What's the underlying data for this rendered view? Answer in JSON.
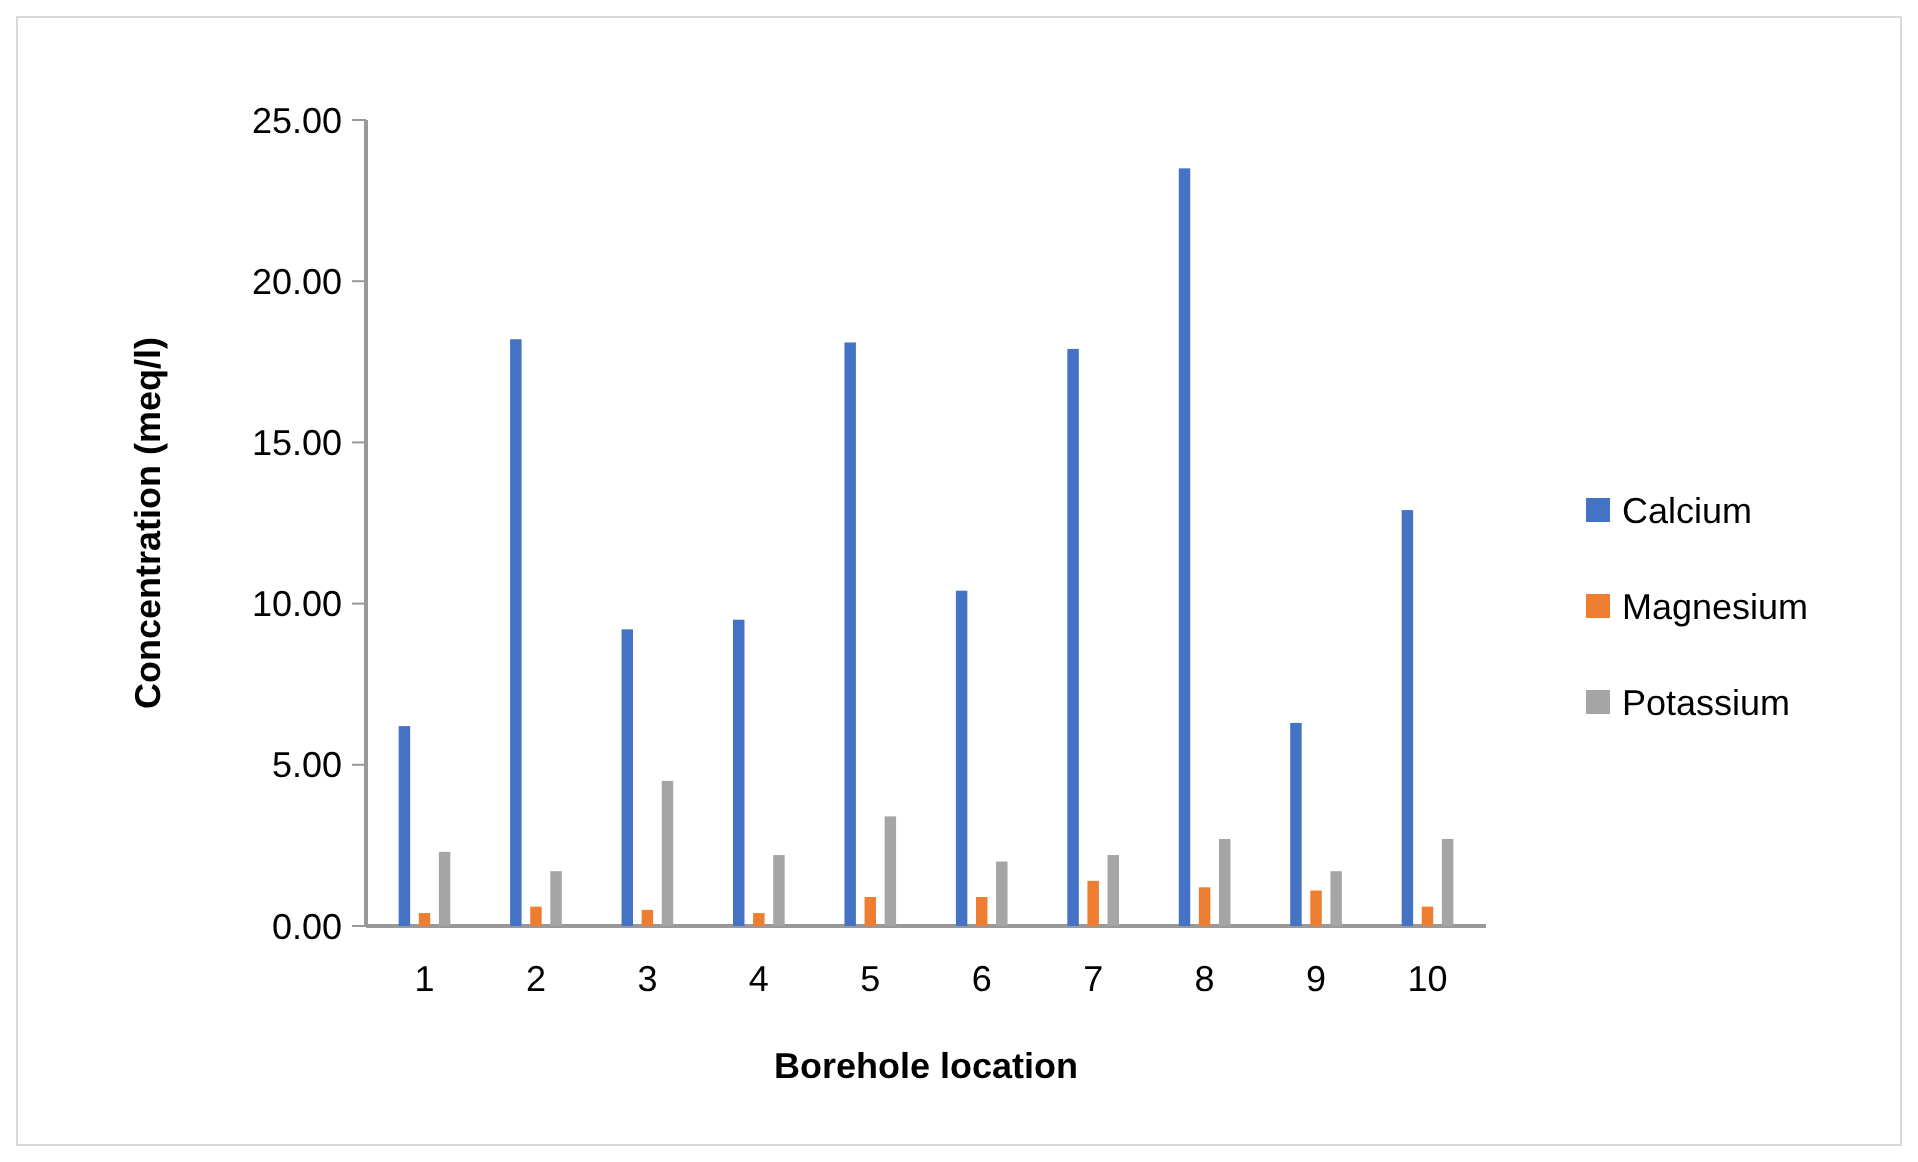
{
  "chart_data": {
    "type": "bar",
    "xlabel": "Borehole location",
    "ylabel": "Concentration (meq/l)",
    "categories": [
      "1",
      "2",
      "3",
      "4",
      "5",
      "6",
      "7",
      "8",
      "9",
      "10"
    ],
    "series": [
      {
        "name": "Calcium",
        "color": "#4472c4",
        "values": [
          6.2,
          18.2,
          9.2,
          9.5,
          18.1,
          10.4,
          17.9,
          23.5,
          6.3,
          12.9
        ]
      },
      {
        "name": "Magnesium",
        "color": "#ed7d31",
        "values": [
          0.4,
          0.6,
          0.5,
          0.4,
          0.9,
          0.9,
          1.4,
          1.2,
          1.1,
          0.6
        ]
      },
      {
        "name": "Potassium",
        "color": "#a5a5a5",
        "values": [
          2.3,
          1.7,
          4.5,
          2.2,
          3.4,
          2.0,
          2.2,
          2.7,
          1.7,
          2.7
        ]
      }
    ],
    "ylim": [
      0,
      25
    ],
    "yticks": [
      {
        "value": 0,
        "label": "0.00"
      },
      {
        "value": 5,
        "label": "5.00"
      },
      {
        "value": 10,
        "label": "10.00"
      },
      {
        "value": 15,
        "label": "15.00"
      },
      {
        "value": 20,
        "label": "20.00"
      },
      {
        "value": 25,
        "label": "25.00"
      }
    ],
    "grid": false,
    "legend": "right"
  }
}
